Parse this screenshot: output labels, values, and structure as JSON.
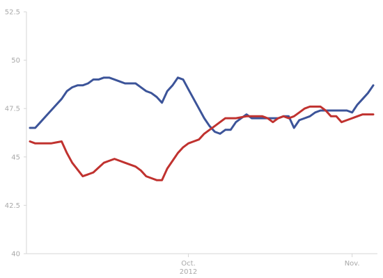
{
  "chart_data": {
    "type": "line",
    "title": "",
    "xlabel": "",
    "ylabel": "",
    "x": [
      "2012-09-01",
      "2012-09-02",
      "2012-09-03",
      "2012-09-04",
      "2012-09-05",
      "2012-09-06",
      "2012-09-07",
      "2012-09-08",
      "2012-09-09",
      "2012-09-10",
      "2012-09-11",
      "2012-09-12",
      "2012-09-13",
      "2012-09-14",
      "2012-09-15",
      "2012-09-16",
      "2012-09-17",
      "2012-09-18",
      "2012-09-19",
      "2012-09-20",
      "2012-09-21",
      "2012-09-22",
      "2012-09-23",
      "2012-09-24",
      "2012-09-25",
      "2012-09-26",
      "2012-09-27",
      "2012-09-28",
      "2012-09-29",
      "2012-09-30",
      "2012-10-01",
      "2012-10-02",
      "2012-10-03",
      "2012-10-04",
      "2012-10-05",
      "2012-10-06",
      "2012-10-07",
      "2012-10-08",
      "2012-10-09",
      "2012-10-10",
      "2012-10-11",
      "2012-10-12",
      "2012-10-13",
      "2012-10-14",
      "2012-10-15",
      "2012-10-16",
      "2012-10-17",
      "2012-10-18",
      "2012-10-19",
      "2012-10-20",
      "2012-10-21",
      "2012-10-22",
      "2012-10-23",
      "2012-10-24",
      "2012-10-25",
      "2012-10-26",
      "2012-10-27",
      "2012-10-28",
      "2012-10-29",
      "2012-10-30",
      "2012-10-31",
      "2012-11-01",
      "2012-11-02",
      "2012-11-03",
      "2012-11-04",
      "2012-11-05"
    ],
    "series": [
      {
        "color": "#3c5499",
        "values": [
          46.5,
          46.5,
          46.8,
          47.1,
          47.4,
          47.7,
          48.0,
          48.4,
          48.6,
          48.7,
          48.7,
          48.8,
          49.0,
          49.0,
          49.1,
          49.1,
          49.0,
          48.9,
          48.8,
          48.8,
          48.8,
          48.6,
          48.4,
          48.3,
          48.1,
          47.8,
          48.4,
          48.7,
          49.1,
          49.0,
          48.5,
          48.0,
          47.5,
          47.0,
          46.6,
          46.3,
          46.2,
          46.4,
          46.4,
          46.8,
          47.0,
          47.2,
          47.0,
          47.0,
          47.0,
          47.0,
          47.0,
          47.0,
          47.1,
          47.1,
          46.5,
          46.9,
          47.0,
          47.1,
          47.3,
          47.4,
          47.4,
          47.4,
          47.4,
          47.4,
          47.4,
          47.3,
          47.7,
          48.0,
          48.3,
          48.7
        ]
      },
      {
        "color": "#c0322f",
        "values": [
          45.8,
          45.7,
          45.7,
          45.7,
          45.7,
          45.75,
          45.8,
          45.2,
          44.7,
          44.35,
          44.0,
          44.1,
          44.2,
          44.45,
          44.7,
          44.8,
          44.9,
          44.8,
          44.7,
          44.6,
          44.5,
          44.3,
          44.0,
          43.9,
          43.8,
          43.8,
          44.4,
          44.8,
          45.2,
          45.5,
          45.7,
          45.8,
          45.9,
          46.2,
          46.4,
          46.6,
          46.8,
          47.0,
          47.0,
          47.0,
          47.05,
          47.1,
          47.1,
          47.1,
          47.1,
          47.0,
          46.8,
          47.0,
          47.1,
          47.0,
          47.1,
          47.3,
          47.5,
          47.6,
          47.6,
          47.6,
          47.4,
          47.1,
          47.1,
          46.8,
          46.9,
          47.0,
          47.1,
          47.2,
          47.2,
          47.2
        ]
      }
    ],
    "ylim": [
      40,
      52.5
    ],
    "yticks": [
      "40",
      "42.5",
      "45",
      "47.5",
      "50",
      "52.5"
    ],
    "xticks": [
      {
        "date": "2012-10-01",
        "line1": "Oct.",
        "line2": "2012"
      },
      {
        "date": "2012-11-01",
        "line1": "Nov.",
        "line2": ""
      }
    ],
    "grid": false,
    "legend": "none",
    "axis_color": "#d6d6d6",
    "tick_label_color": "#a8a8a8"
  }
}
